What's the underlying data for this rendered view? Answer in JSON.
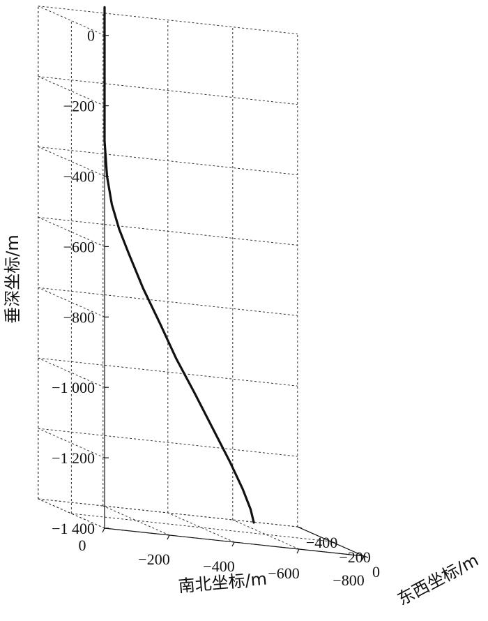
{
  "chart_data": {
    "type": "line",
    "title": "",
    "zlabel": "垂深坐标/m",
    "xlabel": "南北坐标/m",
    "ylabel": "东西坐标/m",
    "z_ticks": [
      {
        "value": 0,
        "label": "0"
      },
      {
        "value": -200,
        "label": "−200"
      },
      {
        "value": -400,
        "label": "−400"
      },
      {
        "value": -600,
        "label": "−600"
      },
      {
        "value": -800,
        "label": "−800"
      },
      {
        "value": -1000,
        "label": "−1 000"
      },
      {
        "value": -1200,
        "label": "−1 200"
      },
      {
        "value": -1400,
        "label": "−1 400"
      }
    ],
    "x_ticks": [
      {
        "value": 0,
        "label": "0"
      },
      {
        "value": -200,
        "label": "−200"
      },
      {
        "value": -400,
        "label": "−400"
      },
      {
        "value": -600,
        "label": "−600"
      },
      {
        "value": -800,
        "label": "−800"
      }
    ],
    "y_ticks": [
      {
        "value": 0,
        "label": "0"
      },
      {
        "value": -200,
        "label": "−200"
      },
      {
        "value": -400,
        "label": "−400"
      }
    ],
    "zlim": [
      -1400,
      0
    ],
    "xlim": [
      -800,
      0
    ],
    "ylim": [
      -400,
      0
    ],
    "grid": true,
    "series": [
      {
        "x": [
          0,
          0,
          0,
          0,
          -10,
          -30,
          -60,
          -100,
          -160,
          -230,
          -300,
          -380,
          -460,
          -540,
          -600,
          -640,
          -660
        ],
        "y": [
          0,
          0,
          0,
          0,
          -5,
          -15,
          -30,
          -50,
          -80,
          -115,
          -155,
          -200,
          -250,
          -300,
          -340,
          -370,
          -390
        ],
        "z": [
          80,
          0,
          -200,
          -300,
          -400,
          -480,
          -550,
          -620,
          -720,
          -820,
          -920,
          -1020,
          -1120,
          -1220,
          -1300,
          -1360,
          -1400
        ]
      }
    ]
  }
}
